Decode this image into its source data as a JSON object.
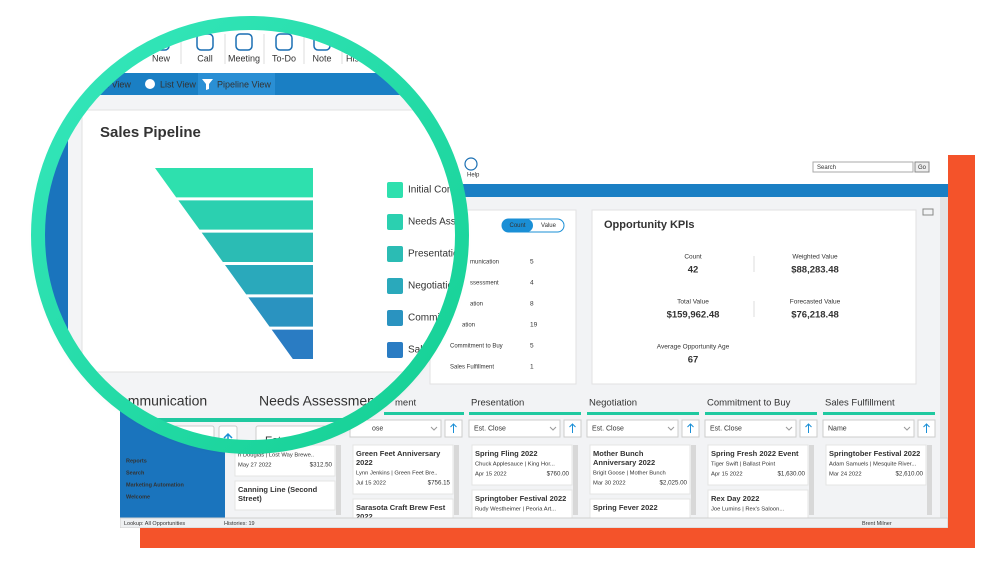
{
  "magnified": {
    "toolbar": [
      "New",
      "Call",
      "Meeting",
      "To-Do",
      "Note",
      "History"
    ],
    "tabs": [
      "ail View",
      "List View",
      "Pipeline View"
    ],
    "title": "Sales Pipeline",
    "legend": [
      "Initial Communi",
      "Needs Assessm",
      "Presentation",
      "Negotiation",
      "Commitment",
      "Sales Fulfil"
    ],
    "columns": [
      "ial Communication",
      "Needs Assessment"
    ],
    "sort": "Est. Close"
  },
  "window": {
    "help": "Help",
    "search": "Search",
    "go": "Go",
    "sidebar": [
      "Reports",
      "Search",
      "Marketing Automation",
      "Welcome"
    ],
    "counts": {
      "toggle": [
        "Count",
        "Value"
      ],
      "rows": [
        {
          "label": "munication",
          "count": 5
        },
        {
          "label": "ssessment",
          "count": 4
        },
        {
          "label": "ation",
          "count": 8
        },
        {
          "label": "ation",
          "count": 19
        },
        {
          "label": "Commitment to Buy",
          "count": 5
        },
        {
          "label": "Sales Fulfillment",
          "count": 1
        }
      ]
    },
    "kpis": {
      "title": "Opportunity KPIs",
      "items": [
        {
          "label": "Count",
          "value": 42
        },
        {
          "label": "Weighted Value",
          "value": "$88,283.48"
        },
        {
          "label": "Total Value",
          "value": "$159,962.48"
        },
        {
          "label": "Forecasted Value",
          "value": "$76,218.48"
        },
        {
          "label": "Average Opportunity Age",
          "value": 67
        }
      ]
    },
    "columns": [
      {
        "cards": [
          {
            "contact": "n Douglas | Lost Way Brewe..",
            "date": "May 27 2022",
            "amount": "$312.50"
          },
          {
            "title": "Canning Line (Second Street)"
          }
        ]
      },
      {
        "header": "ment",
        "sort": "ose",
        "cards": [
          {
            "title": "Green Feet Anniversary 2022",
            "contact": "Lynn Jenkins | Green Feet Bre..",
            "date": "Jul 15 2022",
            "amount": "$756.15"
          },
          {
            "title": "Sarasota Craft Brew Fest 2022"
          }
        ]
      },
      {
        "header": "Presentation",
        "sort": "Est. Close",
        "cards": [
          {
            "title": "Spring Fling 2022",
            "contact": "Chuck Applesauce | King Hor...",
            "date": "Apr 15 2022",
            "amount": "$760.00"
          },
          {
            "title": "Springtober Festival 2022",
            "contact": "Rudy Westheimer | Peoria Art..."
          }
        ]
      },
      {
        "header": "Negotiation",
        "sort": "Est. Close",
        "cards": [
          {
            "title": "Mother Bunch Anniversary 2022",
            "contact": "Brigit Goose | Mother Bunch",
            "date": "Mar 30 2022",
            "amount": "$2,025.00"
          },
          {
            "title": "Spring Fever 2022"
          }
        ]
      },
      {
        "header": "Commitment to Buy",
        "sort": "Est. Close",
        "cards": [
          {
            "title": "Spring Fresh 2022 Event",
            "contact": "Tiger Swift | Ballast Point",
            "date": "Apr 15 2022",
            "amount": "$1,630.00"
          },
          {
            "title": "Rex Day 2022",
            "contact": "Joe Lumins | Rex's Saloon..."
          }
        ]
      },
      {
        "header": "Sales Fulfillment",
        "sort": "Name",
        "cards": [
          {
            "title": "Springtober Festival 2022",
            "contact": "Adam Samuels | Mesquite River...",
            "date": "Mar 24 2022",
            "amount": "$2,610.00"
          }
        ]
      }
    ],
    "status": [
      "Lookup: All Opportunities",
      "Histories: 19",
      "Brent Milner"
    ]
  }
}
